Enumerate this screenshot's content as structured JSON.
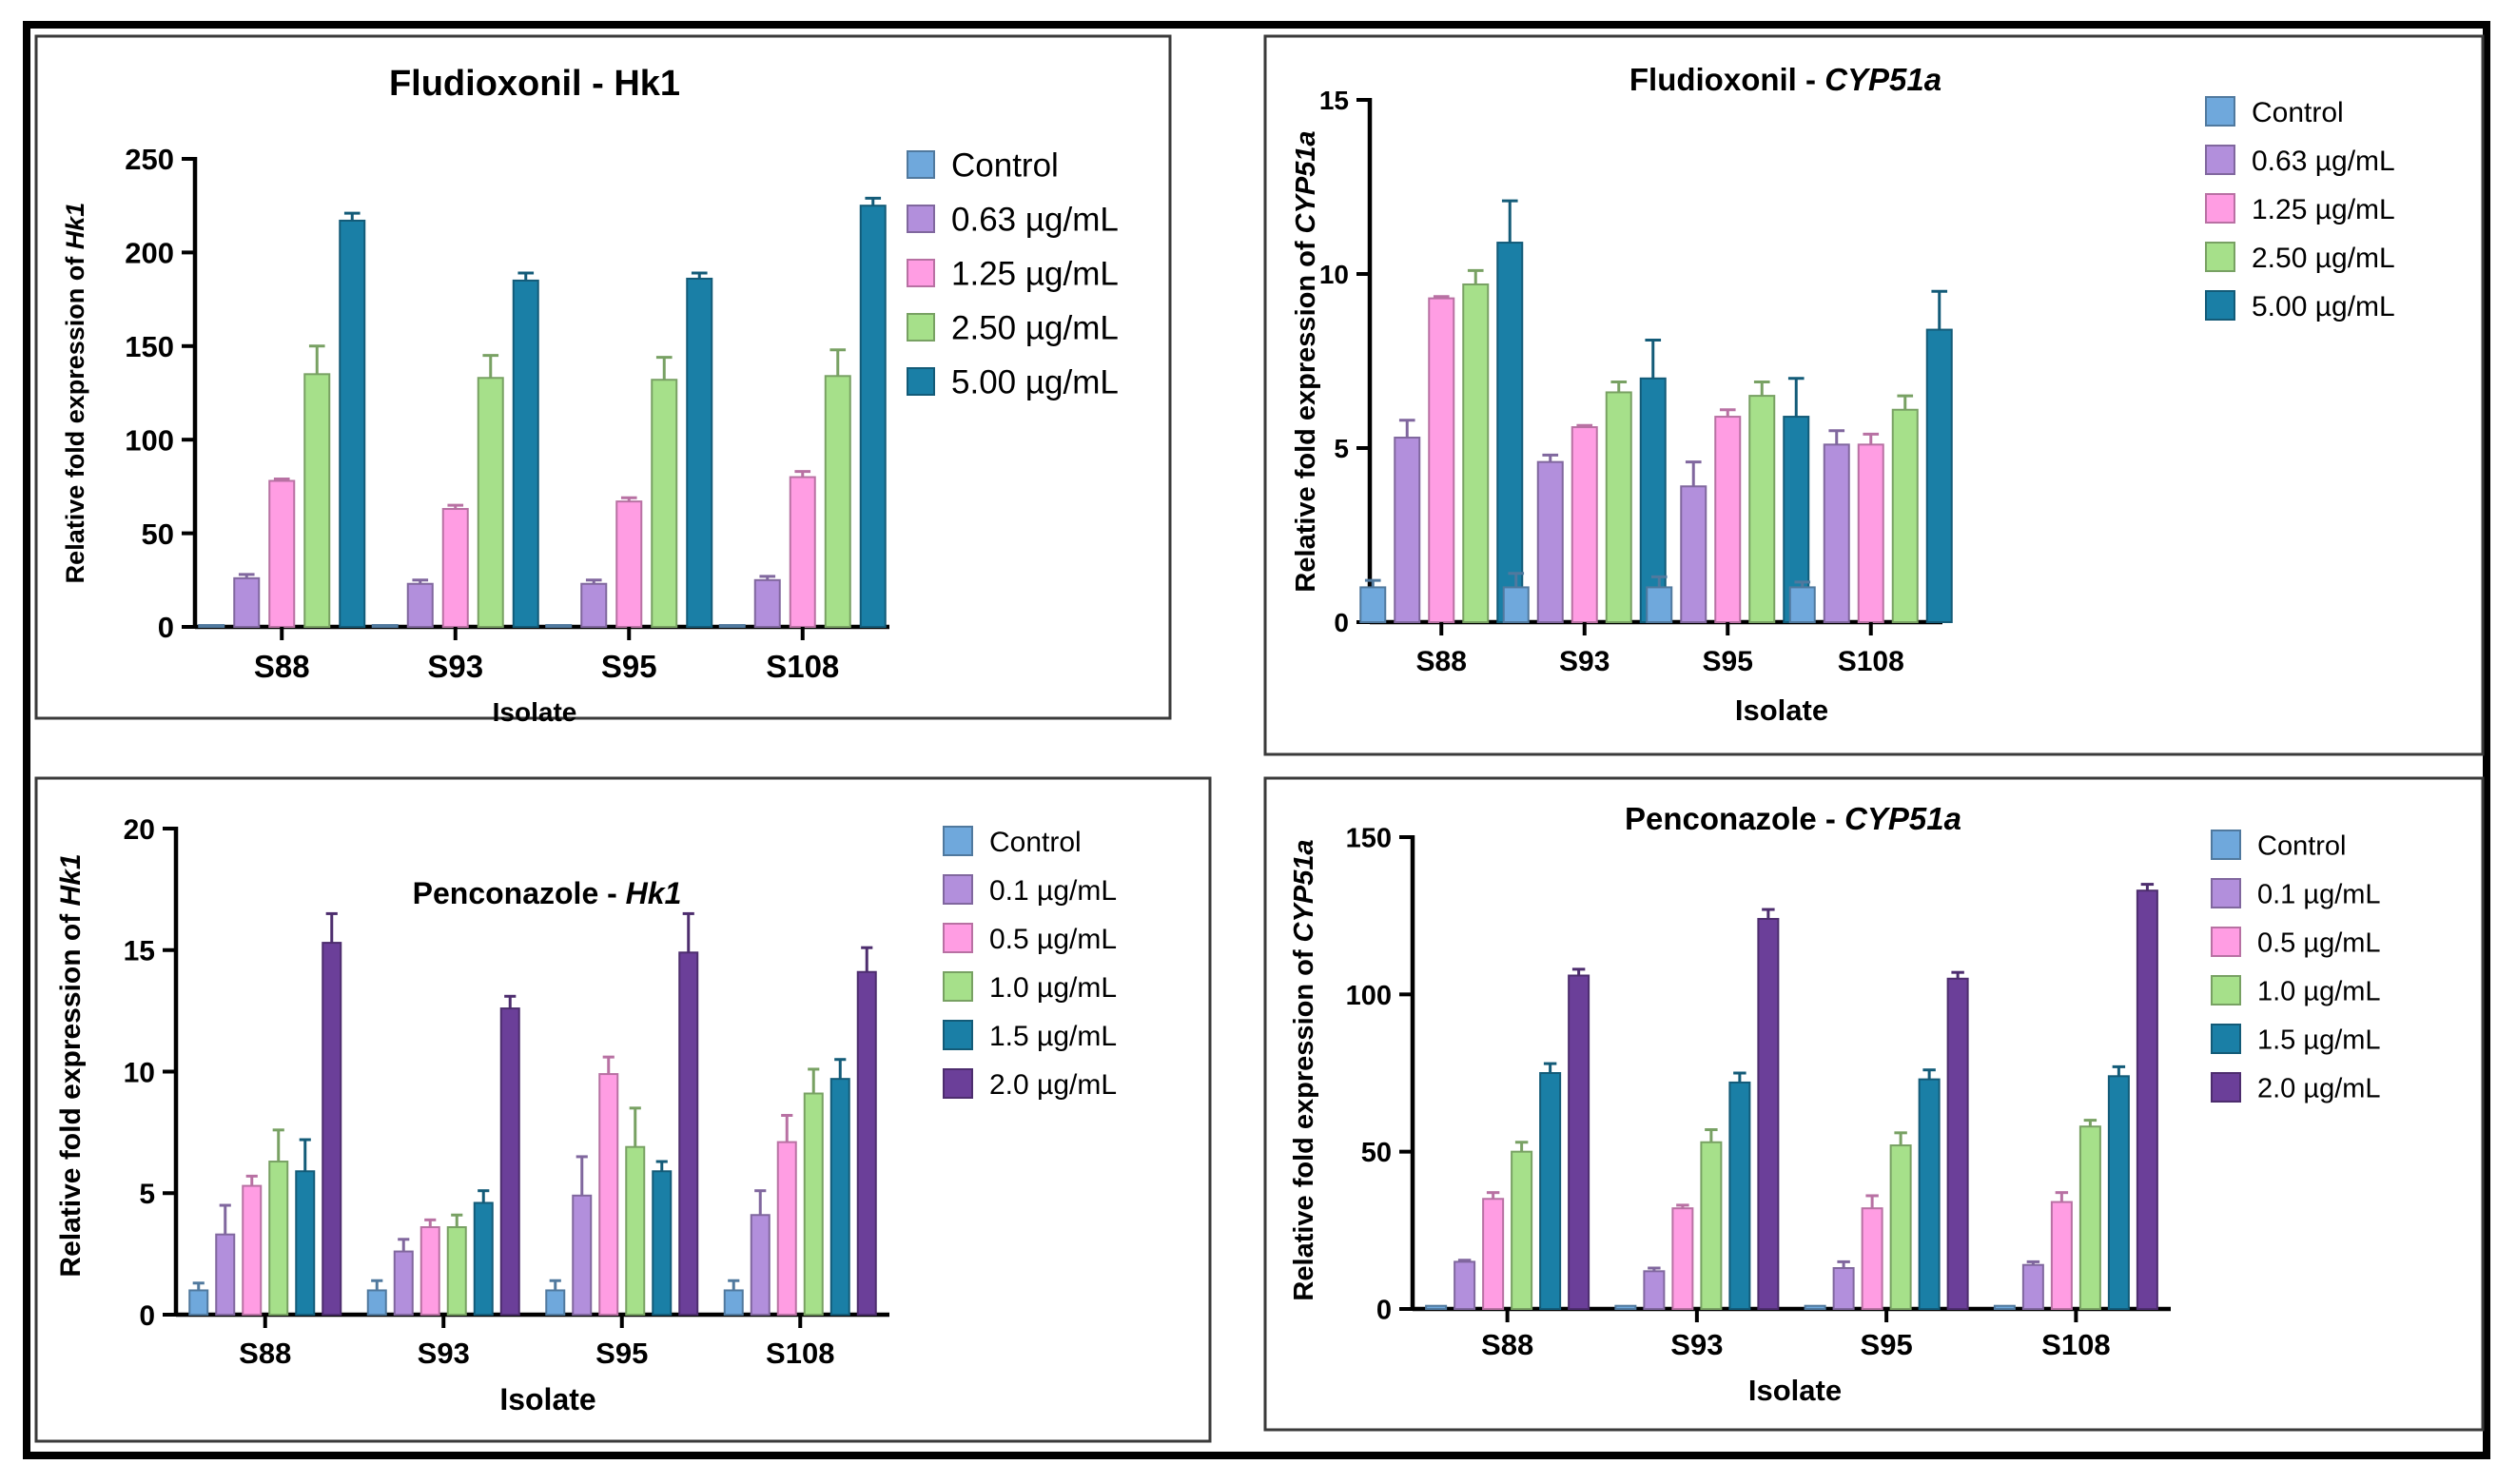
{
  "chart_data": [
    {
      "type": "bar",
      "title": "Fludioxonil - Hk1",
      "title_parts": [
        {
          "text": "Fludioxonil - Hk1",
          "italic": false
        }
      ],
      "xlabel": "Isolate",
      "ylabel_parts": [
        {
          "text": "Relative fold expression of ",
          "italic": false
        },
        {
          "text": "Hk1",
          "italic": true
        }
      ],
      "categories": [
        "S88",
        "S93",
        "S95",
        "S108"
      ],
      "ylim": [
        0,
        250
      ],
      "yticks": [
        0,
        50,
        100,
        150,
        200,
        250
      ],
      "series": [
        {
          "name": "Control",
          "color": "#6fa8dc",
          "values": [
            1,
            1,
            1,
            1
          ],
          "errors": [
            0,
            0,
            0,
            0
          ]
        },
        {
          "name": "0.63 µg/mL",
          "color": "#b28fdc",
          "values": [
            26,
            23,
            23,
            25
          ],
          "errors": [
            2,
            2,
            2,
            2
          ]
        },
        {
          "name": "1.25 µg/mL",
          "color": "#ff9de3",
          "values": [
            78,
            63,
            67,
            80
          ],
          "errors": [
            1,
            2,
            2,
            3
          ]
        },
        {
          "name": "2.50 µg/mL",
          "color": "#a6e08a",
          "values": [
            135,
            133,
            132,
            134
          ],
          "errors": [
            15,
            12,
            12,
            14
          ]
        },
        {
          "name": "5.00 µg/mL",
          "color": "#1a7fa6",
          "values": [
            217,
            185,
            186,
            225
          ],
          "errors": [
            4,
            4,
            3,
            4
          ]
        }
      ]
    },
    {
      "type": "bar",
      "title": "Fludioxonil - CYP51a",
      "title_parts": [
        {
          "text": "Fludioxonil - ",
          "italic": false
        },
        {
          "text": "CYP51a",
          "italic": true
        }
      ],
      "xlabel": "Isolate",
      "ylabel_parts": [
        {
          "text": "Relative fold expression of ",
          "italic": false
        },
        {
          "text": "CYP51a",
          "italic": true
        }
      ],
      "categories": [
        "S88",
        "S93",
        "S95",
        "S108"
      ],
      "ylim": [
        0,
        15
      ],
      "yticks": [
        0,
        5,
        10,
        15
      ],
      "series": [
        {
          "name": "Control",
          "color": "#6fa8dc",
          "values": [
            1.0,
            1.0,
            1.0,
            1.0
          ],
          "errors": [
            0.2,
            0.4,
            0.3,
            0.15
          ]
        },
        {
          "name": "0.63 µg/mL",
          "color": "#b28fdc",
          "values": [
            5.3,
            4.6,
            3.9,
            5.1
          ],
          "errors": [
            0.5,
            0.2,
            0.7,
            0.4
          ]
        },
        {
          "name": "1.25 µg/mL",
          "color": "#ff9de3",
          "values": [
            9.3,
            5.6,
            5.9,
            5.1
          ],
          "errors": [
            0.05,
            0.05,
            0.2,
            0.3
          ]
        },
        {
          "name": "2.50 µg/mL",
          "color": "#a6e08a",
          "values": [
            9.7,
            6.6,
            6.5,
            6.1
          ],
          "errors": [
            0.4,
            0.3,
            0.4,
            0.4
          ]
        },
        {
          "name": "5.00 µg/mL",
          "color": "#1a7fa6",
          "values": [
            10.9,
            7.0,
            5.9,
            8.4
          ],
          "errors": [
            1.2,
            1.1,
            1.1,
            1.1
          ]
        }
      ]
    },
    {
      "type": "bar",
      "title": "Penconazole - Hk1",
      "title_parts": [
        {
          "text": "Penconazole - ",
          "italic": false
        },
        {
          "text": "Hk1",
          "italic": true
        }
      ],
      "xlabel": "Isolate",
      "ylabel_parts": [
        {
          "text": "Relative fold expression of ",
          "italic": false
        },
        {
          "text": "Hk1",
          "italic": true
        }
      ],
      "categories": [
        "S88",
        "S93",
        "S95",
        "S108"
      ],
      "ylim": [
        0,
        20
      ],
      "yticks": [
        0,
        5,
        10,
        15,
        20
      ],
      "series": [
        {
          "name": "Control",
          "color": "#6fa8dc",
          "values": [
            1.0,
            1.0,
            1.0,
            1.0
          ],
          "errors": [
            0.3,
            0.4,
            0.4,
            0.4
          ]
        },
        {
          "name": "0.1 µg/mL",
          "color": "#b28fdc",
          "values": [
            3.3,
            2.6,
            4.9,
            4.1
          ],
          "errors": [
            1.2,
            0.5,
            1.6,
            1.0
          ]
        },
        {
          "name": "0.5 µg/mL",
          "color": "#ff9de3",
          "values": [
            5.3,
            3.6,
            9.9,
            7.1
          ],
          "errors": [
            0.4,
            0.3,
            0.7,
            1.1
          ]
        },
        {
          "name": "1.0 µg/mL",
          "color": "#a6e08a",
          "values": [
            6.3,
            3.6,
            6.9,
            9.1
          ],
          "errors": [
            1.3,
            0.5,
            1.6,
            1.0
          ]
        },
        {
          "name": "1.5 µg/mL",
          "color": "#1a7fa6",
          "values": [
            5.9,
            4.6,
            5.9,
            9.7
          ],
          "errors": [
            1.3,
            0.5,
            0.4,
            0.8
          ]
        },
        {
          "name": "2.0 µg/mL",
          "color": "#6b3f99",
          "values": [
            15.3,
            12.6,
            14.9,
            14.1
          ],
          "errors": [
            1.2,
            0.5,
            1.6,
            1.0
          ]
        }
      ]
    },
    {
      "type": "bar",
      "title": "Penconazole - CYP51a",
      "title_parts": [
        {
          "text": "Penconazole - ",
          "italic": false
        },
        {
          "text": "CYP51a",
          "italic": true
        }
      ],
      "xlabel": "Isolate",
      "ylabel_parts": [
        {
          "text": "Relative fold expression of ",
          "italic": false
        },
        {
          "text": "CYP51a",
          "italic": true
        }
      ],
      "categories": [
        "S88",
        "S93",
        "S95",
        "S108"
      ],
      "ylim": [
        0,
        150
      ],
      "yticks": [
        0,
        50,
        100,
        150
      ],
      "series": [
        {
          "name": "Control",
          "color": "#6fa8dc",
          "values": [
            1,
            1,
            1,
            1
          ],
          "errors": [
            0,
            0,
            0,
            0
          ]
        },
        {
          "name": "0.1 µg/mL",
          "color": "#b28fdc",
          "values": [
            15,
            12,
            13,
            14
          ],
          "errors": [
            0.5,
            1,
            2,
            1
          ]
        },
        {
          "name": "0.5 µg/mL",
          "color": "#ff9de3",
          "values": [
            35,
            32,
            32,
            34
          ],
          "errors": [
            2,
            1,
            4,
            3
          ]
        },
        {
          "name": "1.0 µg/mL",
          "color": "#a6e08a",
          "values": [
            50,
            53,
            52,
            58
          ],
          "errors": [
            3,
            4,
            4,
            2
          ]
        },
        {
          "name": "1.5 µg/mL",
          "color": "#1a7fa6",
          "values": [
            75,
            72,
            73,
            74
          ],
          "errors": [
            3,
            3,
            3,
            3
          ]
        },
        {
          "name": "2.0 µg/mL",
          "color": "#6b3f99",
          "values": [
            106,
            124,
            105,
            133
          ],
          "errors": [
            2,
            3,
            2,
            2
          ]
        }
      ]
    }
  ]
}
